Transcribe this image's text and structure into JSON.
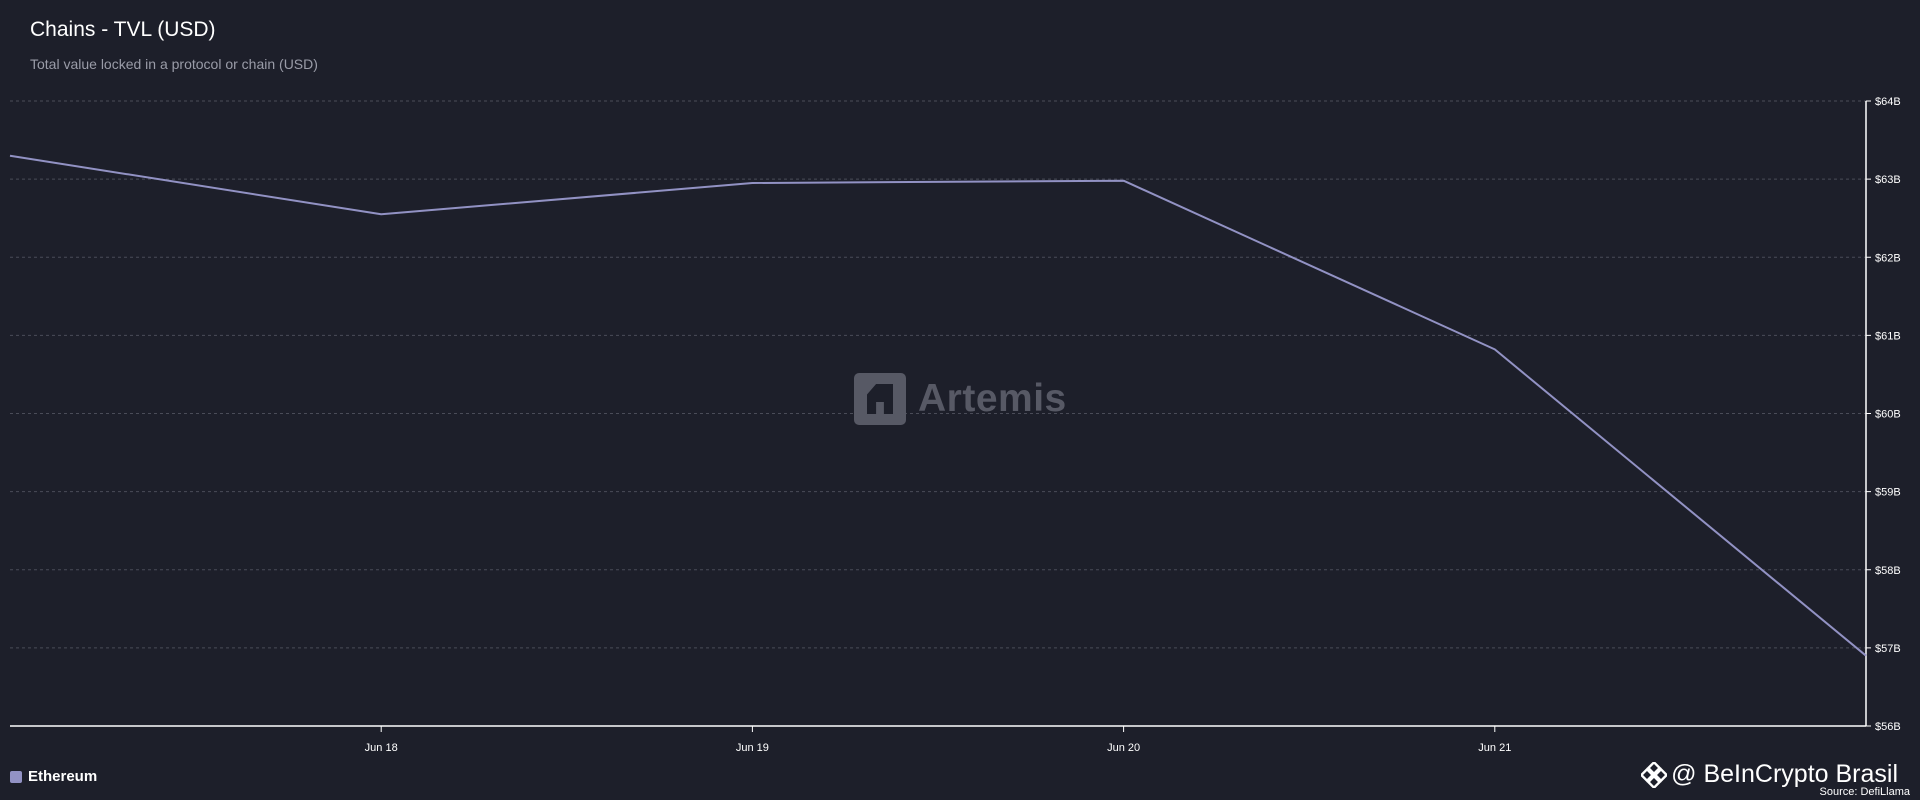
{
  "header": {
    "title": "Chains - TVL (USD)",
    "subtitle": "Total value locked in a protocol or chain (USD)"
  },
  "watermark": {
    "text": "Artemis",
    "icon": "artemis-logo-icon"
  },
  "legend": {
    "label": "Ethereum",
    "color": "#9292c4"
  },
  "brand": {
    "text": "@ BeInCrypto Brasil",
    "icon": "binance-diamond-icon"
  },
  "source": "Source: DefiLlama",
  "colors": {
    "background": "#1d1f2a",
    "line": "#9292c4",
    "grid": "#4a4c58",
    "axis": "#ffffff"
  },
  "chart_data": {
    "type": "line",
    "title": "Chains - TVL (USD)",
    "subtitle": "Total value locked in a protocol or chain (USD)",
    "x_tick_labels": [
      "Jun 18",
      "Jun 19",
      "Jun 20",
      "Jun 21"
    ],
    "y_tick_labels": [
      "$64B",
      "$63B",
      "$62B",
      "$61B",
      "$60B",
      "$59B",
      "$58B",
      "$57B",
      "$56B"
    ],
    "ylim": [
      56,
      64
    ],
    "y_unit": "$B",
    "grid": true,
    "legend_position": "bottom-left",
    "series": [
      {
        "name": "Ethereum",
        "x": [
          "Jun 17",
          "Jun 18",
          "Jun 19",
          "Jun 20",
          "Jun 21",
          "Jun 22"
        ],
        "values": [
          63.3,
          62.55,
          62.95,
          62.98,
          60.82,
          56.9
        ]
      }
    ]
  }
}
